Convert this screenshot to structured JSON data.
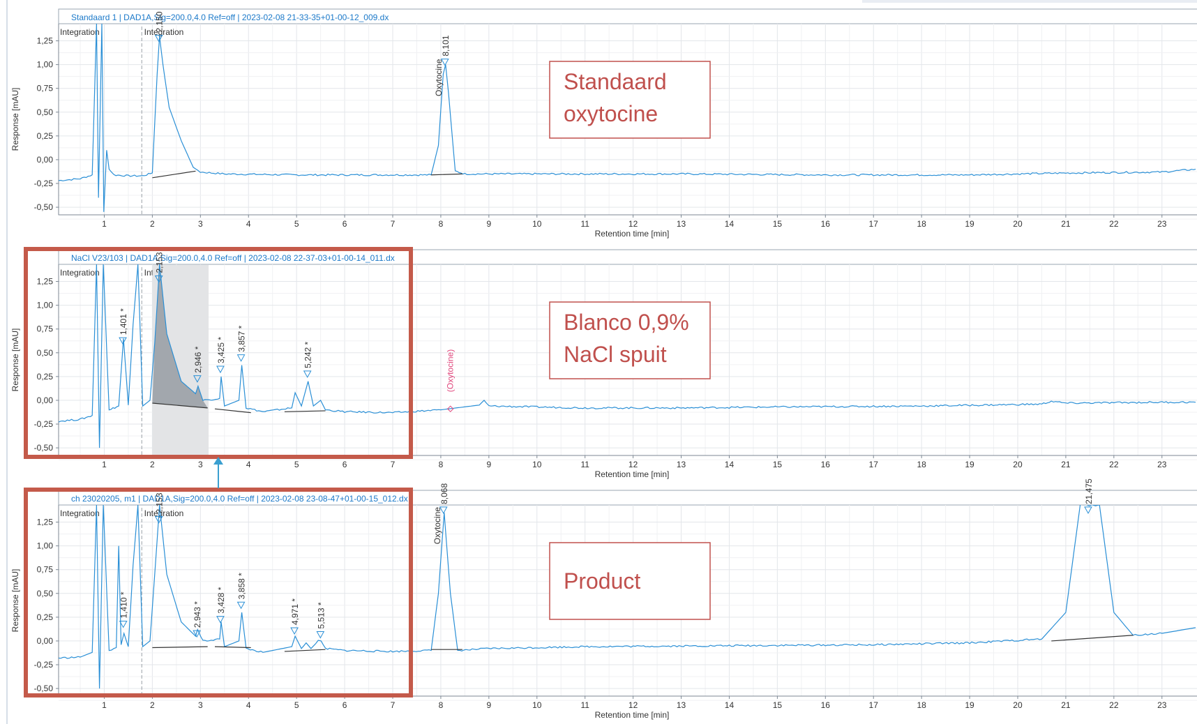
{
  "window": {
    "title": ""
  },
  "axis": {
    "ylabel": "Response [mAU]",
    "xlabel": "Retention time [min]",
    "yticks": [
      "1,25",
      "1,00",
      "0,75",
      "0,50",
      "0,25",
      "0,00",
      "-0,25",
      "-0,50"
    ],
    "xticks": [
      "1",
      "2",
      "3",
      "4",
      "5",
      "6",
      "7",
      "8",
      "9",
      "10",
      "11",
      "12",
      "13",
      "14",
      "15",
      "16",
      "17",
      "18",
      "19",
      "20",
      "21",
      "22",
      "23"
    ]
  },
  "colors": {
    "signal": "#2a8fd6",
    "title_text": "#1b79c9",
    "baseline": "#333333",
    "annotation_box": "#c0504d",
    "annotation_text": "#c0504d",
    "highlight_frame": "#c45a4a",
    "ghost_label": "#e0457b",
    "shaded_peak": "#9aa0a6",
    "shaded_window": "#e3e4e6",
    "arrow": "#3a9fd0"
  },
  "panels": [
    {
      "header": "Standaard 1 | DAD1A,Sig=200.0,4.0  Ref=off | 2023-02-08 21-33-35+01-00-12_009.dx",
      "integration_labels": [
        "Integration",
        "Integration"
      ],
      "callout": [
        "Standaard",
        "oxytocine"
      ],
      "peak_labels": [
        {
          "text": "2,150",
          "rt": 2.15
        },
        {
          "text": "8,101",
          "rt": 8.1,
          "name": "Oxytocine"
        }
      ]
    },
    {
      "header": "NaCl V23/103 | DAD1A,Sig=200.0,4.0  Ref=off | 2023-02-08 22-37-03+01-00-14_011.dx",
      "integration_labels": [
        "Integration",
        "Integration"
      ],
      "callout": [
        "Blanco 0,9%",
        "NaCl spuit"
      ],
      "ghost_label": "(Oxytocine)",
      "peak_labels": [
        {
          "text": "1,401 *",
          "rt": 1.4
        },
        {
          "text": "2,153",
          "rt": 2.15
        },
        {
          "text": "2,946 *",
          "rt": 2.95
        },
        {
          "text": "3,425 *",
          "rt": 3.43
        },
        {
          "text": "3,857 *",
          "rt": 3.86
        },
        {
          "text": "5,242 *",
          "rt": 5.24
        }
      ]
    },
    {
      "header": "ch 23020205, m1 | DAD1A,Sig=200.0,4.0  Ref=off | 2023-02-08 23-08-47+01-00-15_012.dx",
      "integration_labels": [
        "Integration",
        "Integration"
      ],
      "callout": [
        "Product"
      ],
      "peak_labels": [
        {
          "text": "1,410 *",
          "rt": 1.41
        },
        {
          "text": "2,153",
          "rt": 2.15
        },
        {
          "text": "2,943 *",
          "rt": 2.94
        },
        {
          "text": "3,428 *",
          "rt": 3.43
        },
        {
          "text": "3,858 *",
          "rt": 3.86
        },
        {
          "text": "4,971 *",
          "rt": 4.97
        },
        {
          "text": "5,513 *",
          "rt": 5.51
        },
        {
          "text": "8,068",
          "rt": 8.07,
          "name": "Oxytocine"
        },
        {
          "text": "21,475",
          "rt": 21.48
        }
      ]
    }
  ],
  "chart_data": [
    {
      "type": "line",
      "title": "Standaard 1 | DAD1A,Sig=200.0,4.0  Ref=off | 2023-02-08 21-33-35+01-00-12_009.dx",
      "xlabel": "Retention time [min]",
      "ylabel": "Response [mAU]",
      "xlim": [
        0.05,
        23.7
      ],
      "ylim": [
        -0.58,
        1.43
      ],
      "grid": true,
      "series": [
        {
          "x": [
            0.05,
            0.5,
            0.75,
            0.84,
            0.88,
            0.95,
            0.99,
            1.05,
            1.1,
            1.2,
            1.5,
            1.8,
            2.0,
            2.1,
            2.15,
            2.22,
            2.35,
            2.6,
            2.85,
            3.0,
            3.5,
            5,
            7,
            7.8,
            7.95,
            8.05,
            8.1,
            8.16,
            8.3,
            8.5,
            10,
            13,
            16,
            19,
            21,
            23,
            23.7
          ],
          "y": [
            -0.22,
            -0.2,
            -0.16,
            1.43,
            -0.4,
            1.43,
            -0.55,
            0.1,
            -0.1,
            -0.16,
            -0.17,
            -0.17,
            -0.14,
            0.9,
            1.3,
            1.0,
            0.55,
            0.2,
            -0.08,
            -0.13,
            -0.15,
            -0.16,
            -0.16,
            -0.16,
            0.15,
            0.9,
            1.0,
            0.7,
            -0.12,
            -0.15,
            -0.15,
            -0.15,
            -0.16,
            -0.16,
            -0.14,
            -0.13,
            -0.1
          ]
        }
      ],
      "peaks": [
        {
          "rt": 2.15,
          "name": ""
        },
        {
          "rt": 8.101,
          "name": "Oxytocine"
        }
      ]
    },
    {
      "type": "line",
      "title": "NaCl V23/103 | DAD1A,Sig=200.0,4.0  Ref=off | 2023-02-08 22-37-03+01-00-14_011.dx",
      "xlabel": "Retention time [min]",
      "ylabel": "Response [mAU]",
      "xlim": [
        0.05,
        23.7
      ],
      "ylim": [
        -0.58,
        1.43
      ],
      "grid": true,
      "series": [
        {
          "x": [
            0.05,
            0.5,
            0.75,
            0.84,
            0.9,
            0.98,
            1.1,
            1.3,
            1.4,
            1.5,
            1.6,
            1.7,
            1.8,
            1.95,
            2.05,
            2.15,
            2.3,
            2.6,
            2.9,
            2.95,
            3.05,
            3.4,
            3.43,
            3.5,
            3.8,
            3.86,
            3.95,
            4.3,
            4.9,
            4.97,
            5.1,
            5.24,
            5.35,
            5.5,
            5.6,
            6,
            7,
            8,
            8.8,
            8.9,
            9,
            11,
            13,
            15,
            18,
            20.5,
            20.7,
            21,
            23,
            23.7
          ],
          "y": [
            -0.22,
            -0.2,
            -0.16,
            1.43,
            -0.5,
            1.43,
            -0.1,
            -0.06,
            0.65,
            -0.05,
            0.8,
            1.43,
            -0.06,
            0.0,
            0.6,
            1.43,
            0.7,
            0.2,
            0.07,
            0.15,
            0.0,
            0.02,
            0.25,
            -0.06,
            0.0,
            0.37,
            -0.08,
            -0.12,
            -0.08,
            0.08,
            -0.06,
            0.2,
            -0.06,
            0.0,
            -0.1,
            -0.12,
            -0.13,
            -0.1,
            -0.05,
            0.0,
            -0.06,
            -0.08,
            -0.08,
            -0.07,
            -0.06,
            -0.04,
            -0.01,
            -0.03,
            -0.02,
            -0.02
          ]
        }
      ],
      "peaks": [
        {
          "rt": 1.401
        },
        {
          "rt": 2.153
        },
        {
          "rt": 2.946
        },
        {
          "rt": 3.425
        },
        {
          "rt": 3.857
        },
        {
          "rt": 5.242
        }
      ]
    },
    {
      "type": "line",
      "title": "ch 23020205, m1 | DAD1A,Sig=200.0,4.0  Ref=off | 2023-02-08 23-08-47+01-00-15_012.dx",
      "xlabel": "Retention time [min]",
      "ylabel": "Response [mAU]",
      "xlim": [
        0.05,
        23.7
      ],
      "ylim": [
        -0.58,
        1.43
      ],
      "grid": true,
      "series": [
        {
          "x": [
            0.05,
            0.5,
            0.75,
            0.84,
            0.9,
            0.98,
            1.1,
            1.25,
            1.3,
            1.35,
            1.41,
            1.5,
            1.6,
            1.7,
            1.8,
            1.95,
            2.05,
            2.15,
            2.3,
            2.6,
            2.9,
            2.94,
            3.05,
            3.4,
            3.43,
            3.5,
            3.8,
            3.86,
            3.95,
            4.3,
            4.9,
            4.97,
            5.1,
            5.2,
            5.3,
            5.45,
            5.51,
            5.6,
            6,
            7,
            7.8,
            7.95,
            8.07,
            8.2,
            8.35,
            9,
            11,
            14,
            17,
            19,
            20.5,
            21.0,
            21.3,
            21.5,
            21.7,
            22.0,
            22.4,
            23,
            23.7
          ],
          "y": [
            -0.18,
            -0.17,
            -0.12,
            1.43,
            -0.5,
            1.43,
            -0.1,
            -0.07,
            1.0,
            -0.04,
            0.08,
            -0.06,
            0.8,
            1.43,
            -0.06,
            0.0,
            0.7,
            1.43,
            0.7,
            0.2,
            0.05,
            0.12,
            0.0,
            0.02,
            0.2,
            -0.06,
            0.0,
            0.3,
            -0.08,
            -0.12,
            -0.06,
            0.05,
            -0.08,
            -0.02,
            -0.08,
            0.0,
            0.0,
            -0.08,
            -0.1,
            -0.11,
            -0.1,
            0.5,
            1.35,
            0.5,
            -0.1,
            -0.08,
            -0.06,
            -0.05,
            -0.04,
            -0.02,
            0.02,
            0.3,
            1.43,
            1.43,
            1.43,
            0.3,
            0.06,
            0.08,
            0.14
          ]
        }
      ],
      "peaks": [
        {
          "rt": 1.41
        },
        {
          "rt": 2.153
        },
        {
          "rt": 2.943
        },
        {
          "rt": 3.428
        },
        {
          "rt": 3.858
        },
        {
          "rt": 4.971
        },
        {
          "rt": 5.513
        },
        {
          "rt": 8.068,
          "name": "Oxytocine"
        },
        {
          "rt": 21.475
        }
      ]
    }
  ]
}
